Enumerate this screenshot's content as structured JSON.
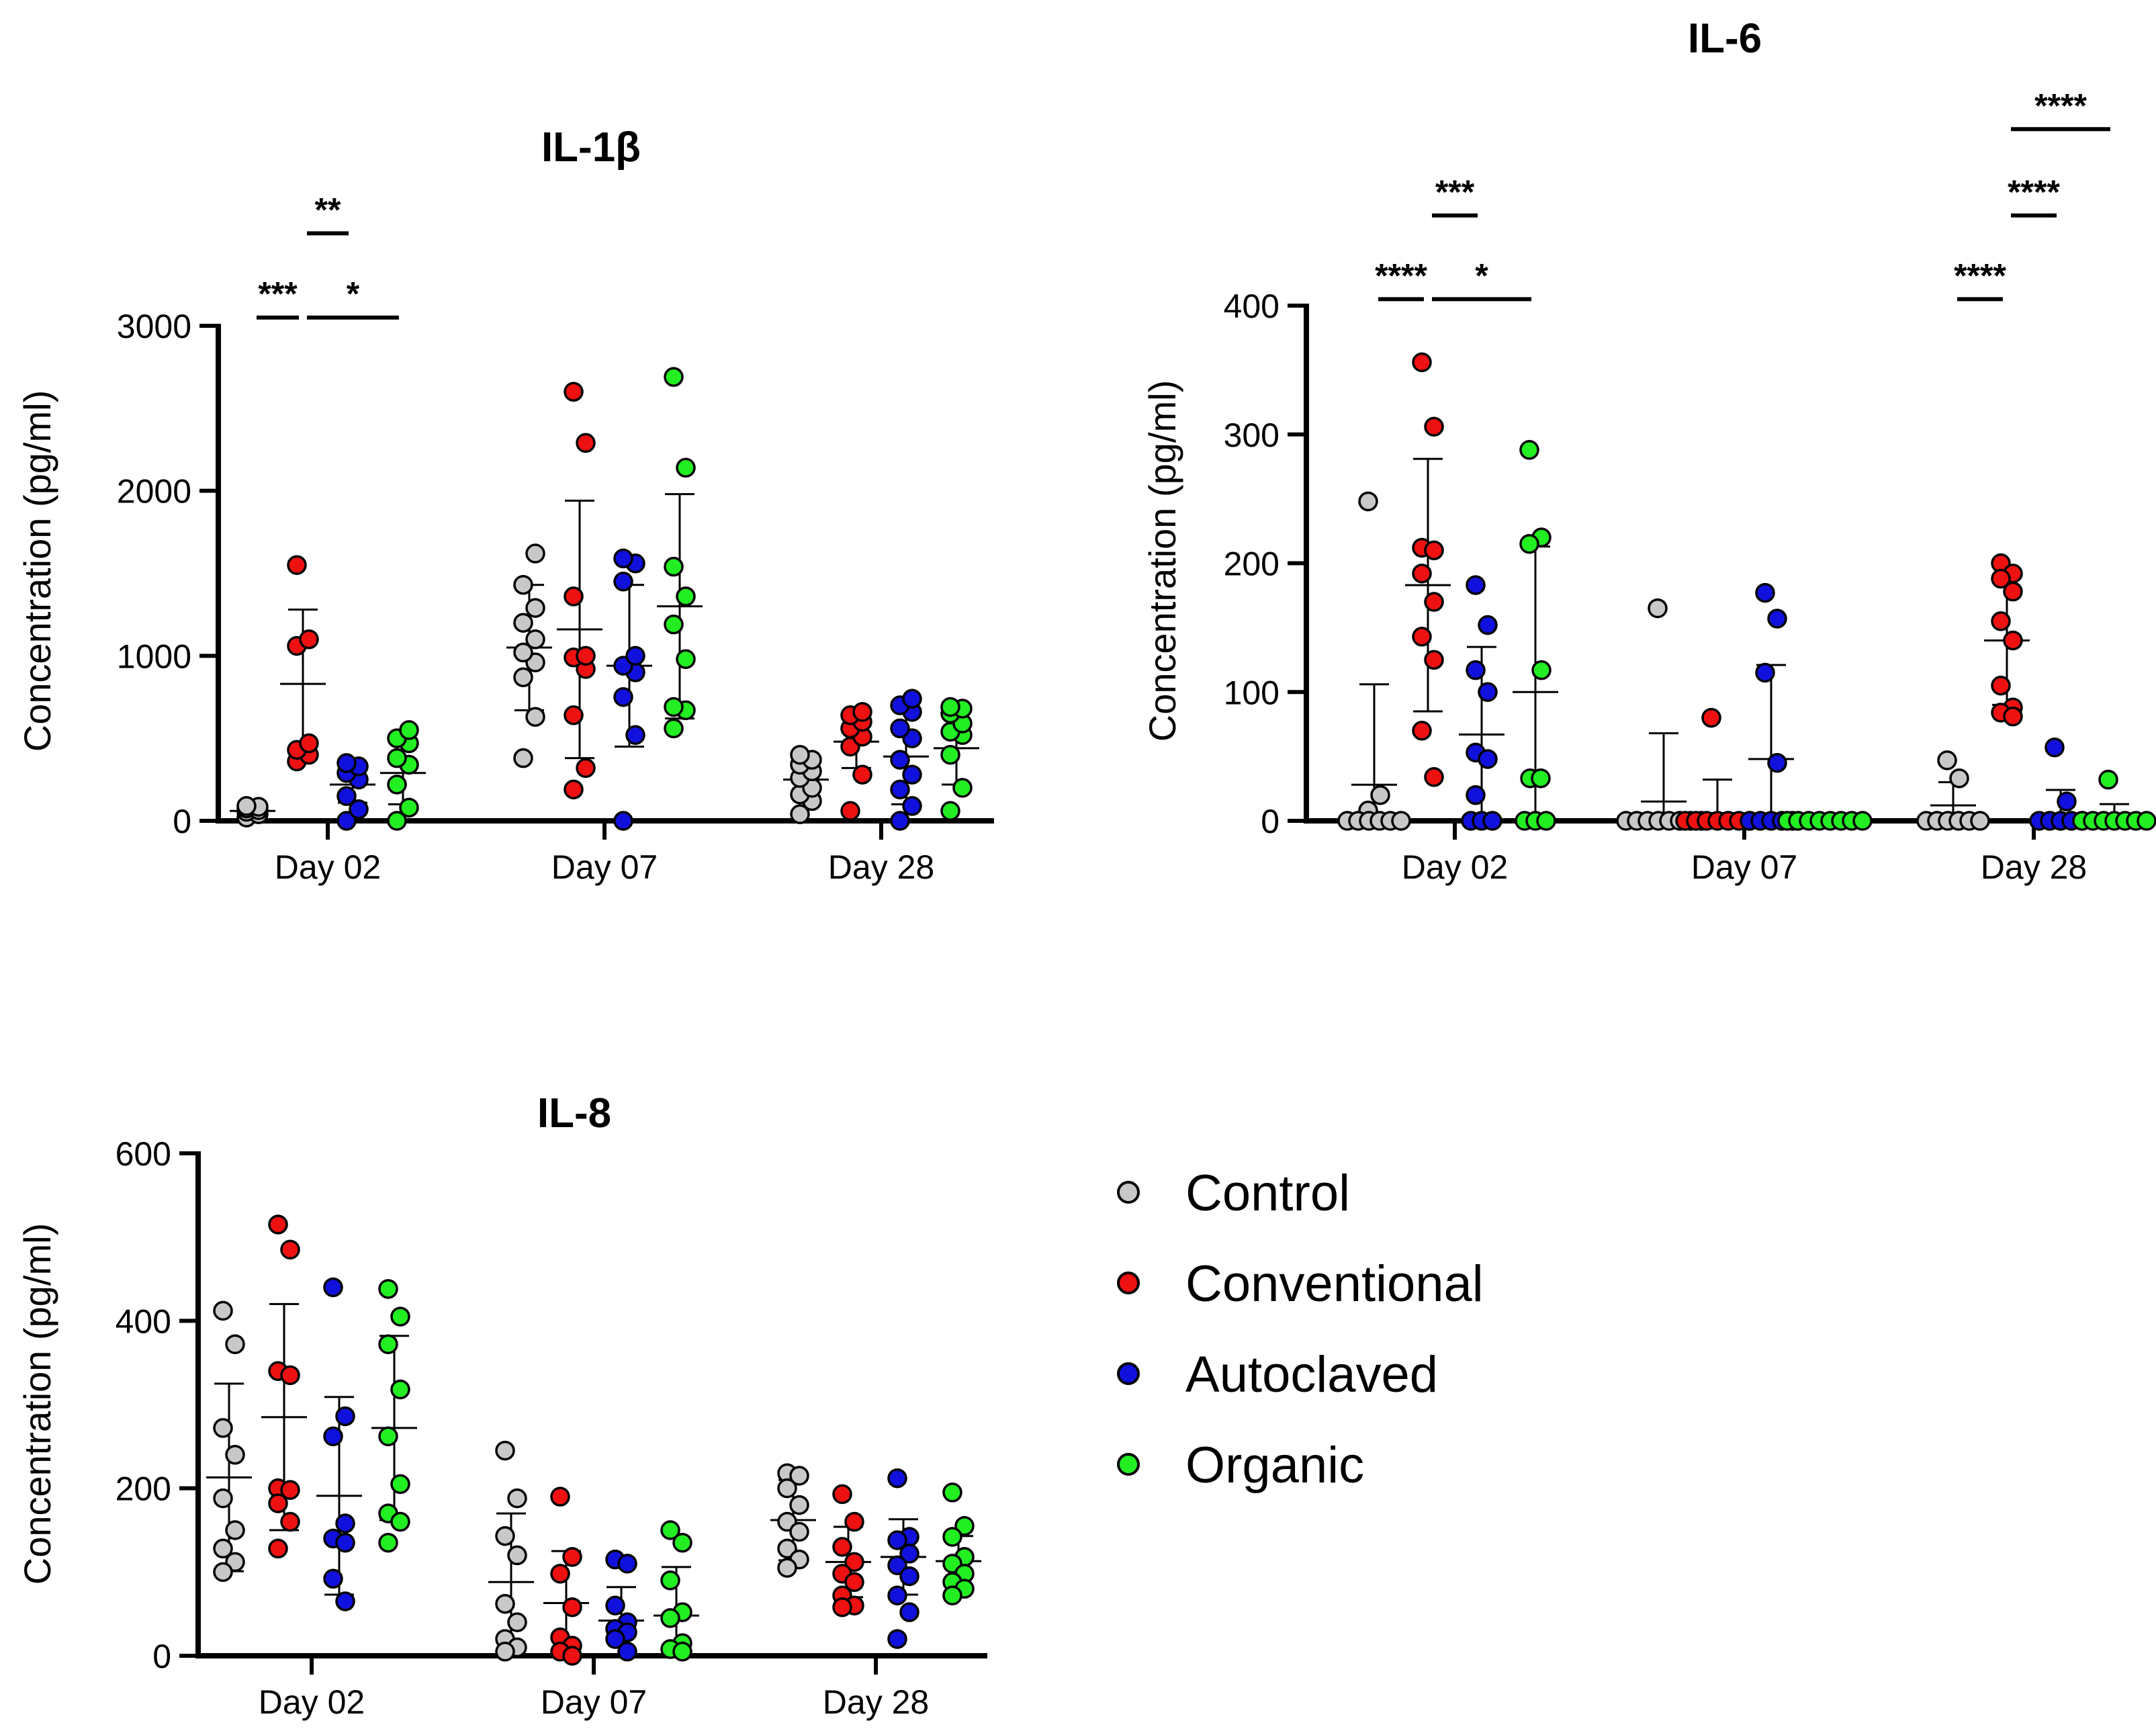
{
  "colors": {
    "Control": "#c8c8c8",
    "Conventional": "#ee1111",
    "Autoclaved": "#1111dd",
    "Organic": "#22ee22"
  },
  "legend": {
    "items": [
      "Control",
      "Conventional",
      "Autoclaved",
      "Organic"
    ]
  },
  "chart_data": [
    {
      "id": "il1b",
      "type": "scatter",
      "title": "IL-1β",
      "ylabel": "Concentration (pg/ml)",
      "ylim": [
        0,
        3000
      ],
      "yticks": [
        0,
        1000,
        2000,
        3000
      ],
      "categories": [
        "Day 02",
        "Day 07",
        "Day 28"
      ],
      "series": [
        {
          "name": "Control",
          "groups": [
            {
              "mean": 60,
              "sd": 30,
              "points": [
                20,
                40,
                55,
                65,
                75,
                85,
                90
              ]
            },
            {
              "mean": 1050,
              "sd": 380,
              "points": [
                380,
                630,
                870,
                960,
                1020,
                1100,
                1200,
                1290,
                1430,
                1620
              ]
            },
            {
              "mean": 250,
              "sd": 100,
              "points": [
                40,
                120,
                160,
                200,
                260,
                300,
                340,
                370,
                400
              ]
            }
          ]
        },
        {
          "name": "Conventional",
          "groups": [
            {
              "mean": 830,
              "sd": 450,
              "points": [
                360,
                400,
                430,
                470,
                1060,
                1100,
                1550
              ]
            },
            {
              "mean": 1160,
              "sd": 780,
              "points": [
                190,
                320,
                640,
                920,
                990,
                1000,
                1360,
                2290,
                2600
              ]
            },
            {
              "mean": 480,
              "sd": 160,
              "points": [
                60,
                280,
                450,
                510,
                560,
                600,
                640,
                660
              ]
            }
          ]
        },
        {
          "name": "Autoclaved",
          "groups": [
            {
              "mean": 220,
              "sd": 110,
              "points": [
                0,
                70,
                150,
                250,
                290,
                330,
                350
              ]
            },
            {
              "mean": 940,
              "sd": 490,
              "points": [
                0,
                520,
                750,
                900,
                940,
                1000,
                1450,
                1560,
                1590
              ]
            },
            {
              "mean": 390,
              "sd": 290,
              "points": [
                0,
                90,
                190,
                280,
                370,
                500,
                560,
                660,
                700,
                740
              ]
            }
          ]
        },
        {
          "name": "Organic",
          "groups": [
            {
              "mean": 290,
              "sd": 190,
              "points": [
                0,
                80,
                220,
                340,
                380,
                470,
                500,
                550
              ]
            },
            {
              "mean": 1300,
              "sd": 680,
              "points": [
                560,
                670,
                690,
                980,
                1190,
                1360,
                1540,
                2140,
                2690
              ]
            },
            {
              "mean": 440,
              "sd": 220,
              "points": [
                60,
                200,
                400,
                520,
                540,
                590,
                650,
                680,
                690
              ]
            }
          ]
        }
      ],
      "significance": [
        {
          "label": "***",
          "day": 0,
          "from": 0,
          "to": 1,
          "y": 3050
        },
        {
          "label": "**",
          "day": 0,
          "from": 1,
          "to": 2,
          "y": 3560
        },
        {
          "label": "*",
          "day": 0,
          "from": 1,
          "to": 3,
          "y": 3050
        }
      ]
    },
    {
      "id": "il6",
      "type": "scatter",
      "title": "IL-6",
      "ylabel": "Concentration (pg/ml)",
      "ylim": [
        0,
        400
      ],
      "yticks": [
        0,
        100,
        200,
        300,
        400
      ],
      "categories": [
        "Day 02",
        "Day 07",
        "Day 28"
      ],
      "series": [
        {
          "name": "Control",
          "groups": [
            {
              "mean": 28,
              "sd": 78,
              "points": [
                248,
                20,
                8,
                0,
                0,
                0,
                0,
                0,
                0
              ]
            },
            {
              "mean": 15,
              "sd": 53,
              "points": [
                165,
                0,
                0,
                0,
                0,
                0,
                0,
                0,
                0
              ]
            },
            {
              "mean": 12,
              "sd": 18,
              "points": [
                47,
                33,
                0,
                0,
                0,
                0,
                0,
                0
              ]
            }
          ]
        },
        {
          "name": "Conventional",
          "groups": [
            {
              "mean": 183,
              "sd": 98,
              "points": [
                356,
                306,
                212,
                210,
                192,
                170,
                143,
                125,
                70,
                34
              ]
            },
            {
              "mean": 6,
              "sd": 26,
              "points": [
                80,
                0,
                0,
                0,
                0,
                0,
                0,
                0
              ]
            },
            {
              "mean": 140,
              "sd": 50,
              "points": [
                200,
                192,
                188,
                178,
                155,
                140,
                105,
                88,
                84,
                81
              ]
            }
          ]
        },
        {
          "name": "Autoclaved",
          "groups": [
            {
              "mean": 67,
              "sd": 68,
              "points": [
                183,
                152,
                117,
                100,
                53,
                48,
                20,
                0,
                0,
                0
              ]
            },
            {
              "mean": 48,
              "sd": 73,
              "points": [
                177,
                157,
                115,
                45,
                0,
                0,
                0,
                0,
                0
              ]
            },
            {
              "mean": 5,
              "sd": 19,
              "points": [
                57,
                15,
                0,
                0,
                0,
                0,
                0
              ]
            }
          ]
        },
        {
          "name": "Organic",
          "groups": [
            {
              "mean": 100,
              "sd": 113,
              "points": [
                288,
                220,
                215,
                117,
                33,
                33,
                0,
                0,
                0
              ]
            },
            {
              "mean": 0,
              "sd": 0,
              "points": [
                0,
                0,
                0,
                0,
                0,
                0,
                0,
                0
              ]
            },
            {
              "mean": 3,
              "sd": 10,
              "points": [
                32,
                0,
                0,
                0,
                0,
                0,
                0,
                0
              ]
            }
          ]
        }
      ],
      "significance": [
        {
          "label": "****",
          "day": 0,
          "from": 0,
          "to": 1,
          "y": 405
        },
        {
          "label": "***",
          "day": 0,
          "from": 1,
          "to": 2,
          "y": 470
        },
        {
          "label": "*",
          "day": 0,
          "from": 1,
          "to": 3,
          "y": 405
        },
        {
          "label": "****",
          "day": 2,
          "from": 0,
          "to": 1,
          "y": 405
        },
        {
          "label": "****",
          "day": 2,
          "from": 1,
          "to": 2,
          "y": 470
        },
        {
          "label": "****",
          "day": 2,
          "from": 1,
          "to": 3,
          "y": 537
        }
      ]
    },
    {
      "id": "il8",
      "type": "scatter",
      "title": "IL-8",
      "ylabel": "Concentration (pg/ml)",
      "ylim": [
        0,
        600
      ],
      "yticks": [
        0,
        200,
        400,
        600
      ],
      "categories": [
        "Day 02",
        "Day 07",
        "Day 28"
      ],
      "series": [
        {
          "name": "Control",
          "groups": [
            {
              "mean": 213,
              "sd": 112,
              "points": [
                412,
                372,
                272,
                240,
                188,
                150,
                128,
                112,
                100
              ]
            },
            {
              "mean": 88,
              "sd": 82,
              "points": [
                245,
                188,
                143,
                120,
                62,
                40,
                20,
                10,
                5
              ]
            },
            {
              "mean": 162,
              "sd": 48,
              "points": [
                218,
                215,
                200,
                180,
                160,
                148,
                128,
                115,
                105
              ]
            }
          ]
        },
        {
          "name": "Conventional",
          "groups": [
            {
              "mean": 285,
              "sd": 135,
              "points": [
                515,
                485,
                340,
                335,
                200,
                198,
                182,
                160,
                128
              ]
            },
            {
              "mean": 63,
              "sd": 62,
              "points": [
                190,
                118,
                98,
                58,
                22,
                12,
                5,
                0
              ]
            },
            {
              "mean": 112,
              "sd": 42,
              "points": [
                193,
                160,
                130,
                112,
                98,
                88,
                72,
                60,
                58
              ]
            }
          ]
        },
        {
          "name": "Autoclaved",
          "groups": [
            {
              "mean": 191,
              "sd": 118,
              "points": [
                440,
                286,
                262,
                158,
                140,
                135,
                92,
                65
              ]
            },
            {
              "mean": 42,
              "sd": 40,
              "points": [
                115,
                110,
                60,
                40,
                32,
                28,
                20,
                5
              ]
            },
            {
              "mean": 118,
              "sd": 45,
              "points": [
                212,
                142,
                138,
                122,
                108,
                95,
                72,
                52,
                20
              ]
            }
          ]
        },
        {
          "name": "Organic",
          "groups": [
            {
              "mean": 272,
              "sd": 110,
              "points": [
                438,
                405,
                372,
                318,
                262,
                205,
                170,
                160,
                135
              ]
            },
            {
              "mean": 48,
              "sd": 58,
              "points": [
                150,
                135,
                90,
                52,
                45,
                15,
                8,
                5
              ]
            },
            {
              "mean": 113,
              "sd": 30,
              "points": [
                195,
                155,
                142,
                118,
                110,
                98,
                88,
                80,
                72
              ]
            }
          ]
        }
      ],
      "significance": []
    }
  ]
}
